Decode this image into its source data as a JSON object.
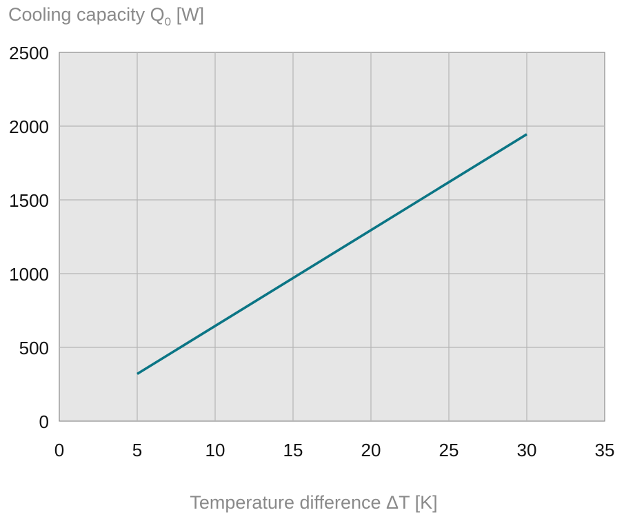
{
  "chart_data": {
    "type": "line",
    "title": "",
    "ylabel": "Cooling capacity Q",
    "ylabel_subscript": "0",
    "ylabel_unit": " [W]",
    "xlabel": "Temperature difference ΔT [K]",
    "xlim": [
      0,
      35
    ],
    "ylim": [
      0,
      2500
    ],
    "xticks": [
      "0",
      "5",
      "10",
      "15",
      "20",
      "25",
      "30",
      "35"
    ],
    "yticks": [
      "0",
      "500",
      "1000",
      "1500",
      "2000",
      "2500"
    ],
    "grid": true,
    "series": [
      {
        "name": "Cooling capacity",
        "color": "#0b7585",
        "x": [
          5,
          30
        ],
        "y": [
          320,
          1945
        ]
      }
    ]
  },
  "colors": {
    "plot_background": "#e6e6e6",
    "grid": "#b5b5b5",
    "axis": "#8c8c8c",
    "line": "#0b7585"
  }
}
